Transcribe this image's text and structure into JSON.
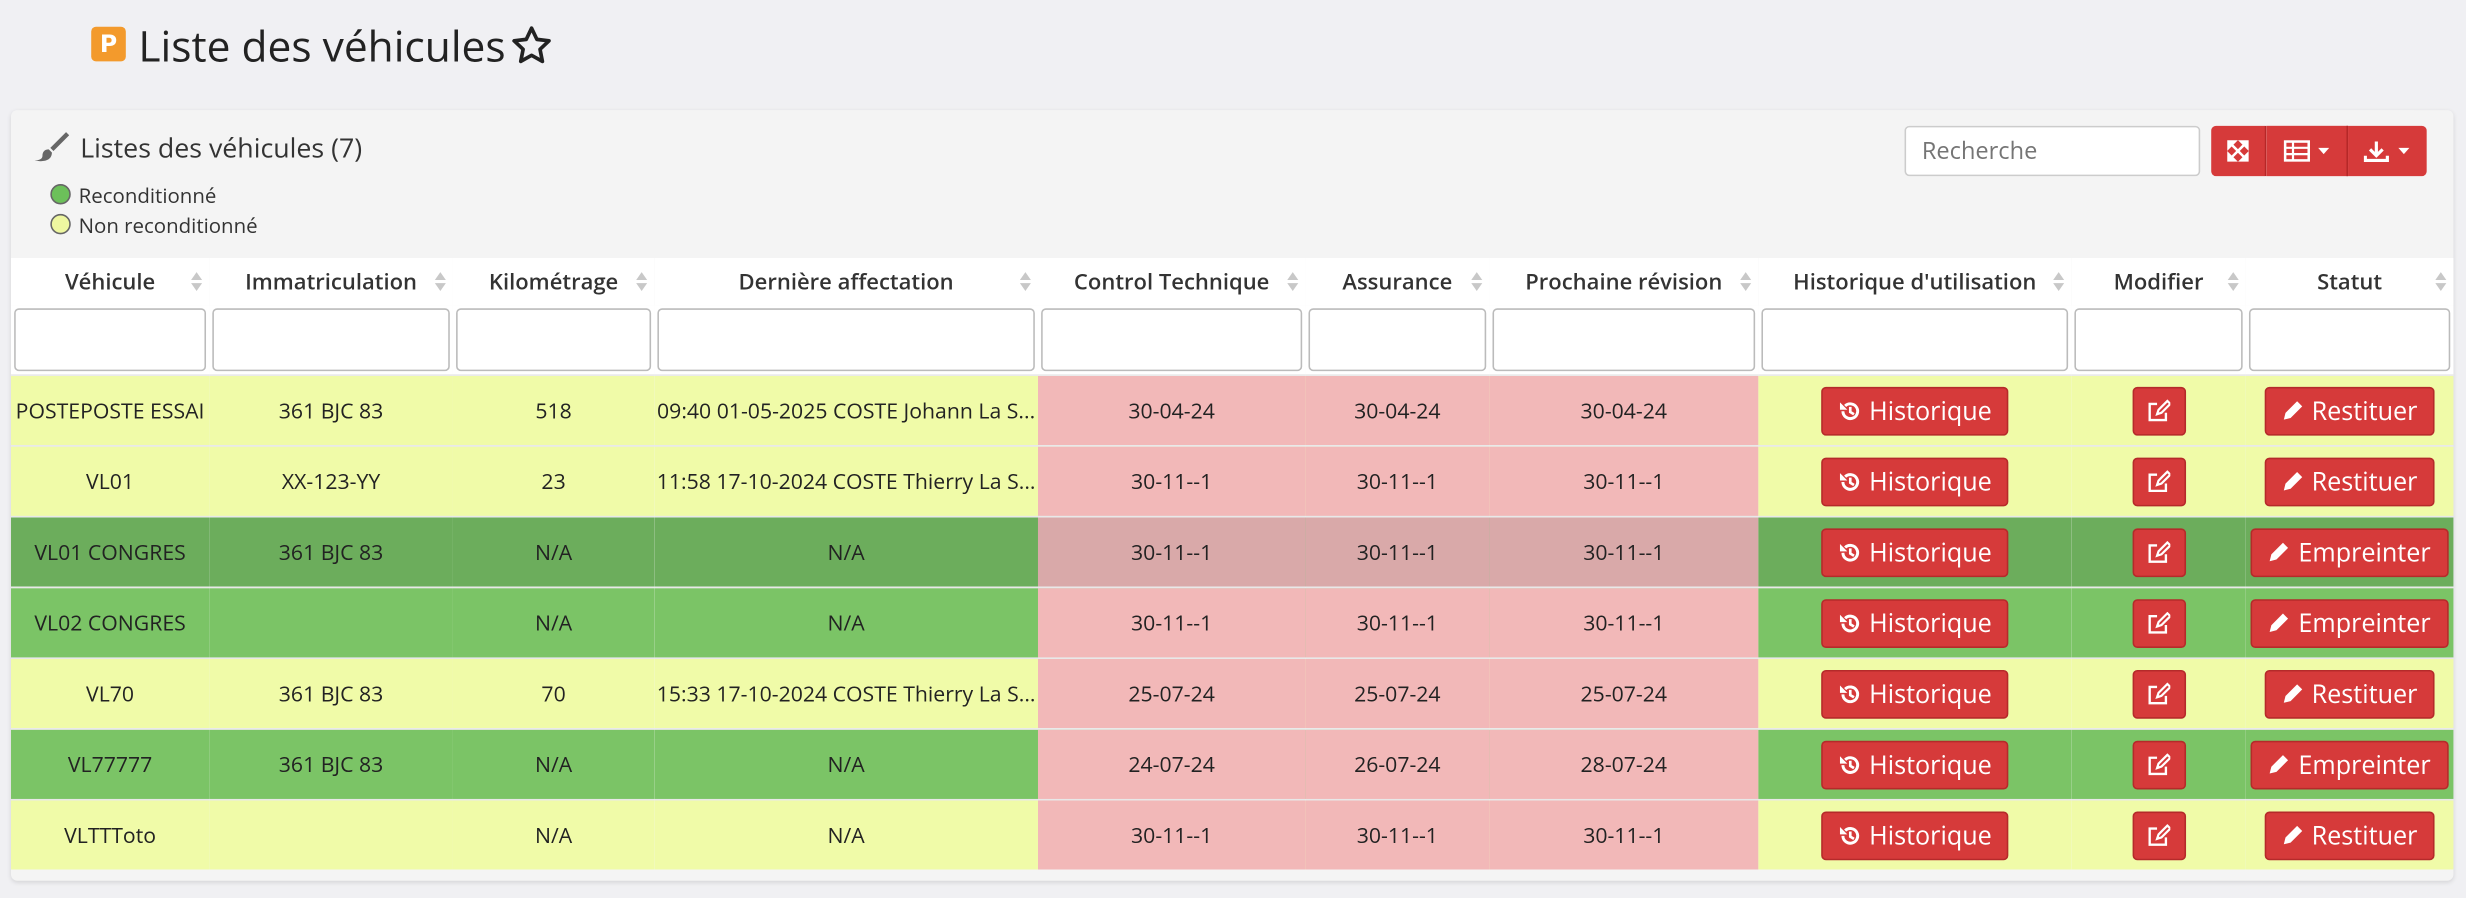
{
  "header": {
    "title": "Liste des véhicules"
  },
  "card": {
    "title": "Listes des véhicules (7)",
    "legend": [
      {
        "label": "Reconditionné",
        "color": "#6cc05a"
      },
      {
        "label": "Non reconditionné",
        "color": "#eef7a0"
      }
    ],
    "search_placeholder": "Recherche"
  },
  "table": {
    "columns": [
      "Véhicule",
      "Immatriculation",
      "Kilométrage",
      "Dernière affectation",
      "Control Technique",
      "Assurance",
      "Prochaine révision",
      "Historique d'utilisation",
      "Modifier",
      "Statut"
    ],
    "rows": [
      {
        "color": "#f0fba8",
        "cells": [
          "POSTEPOSTE ESSAI",
          "361 BJC 83",
          518,
          "09:40 01-05-2025 COSTE Johann La S...",
          "30-04-24",
          "30-04-24",
          "30-04-24",
          "Historique",
          "Restituer"
        ]
      },
      {
        "color": "#f0fba8",
        "cells": [
          "VL01",
          "XX-123-YY",
          23,
          "11:58 17-10-2024 COSTE Thierry La S...",
          "30-11--1",
          "30-11--1",
          "30-11--1",
          "Historique",
          "Restituer"
        ]
      },
      {
        "color": "#6cad5c",
        "cells": [
          "VL01 CONGRES",
          "361 BJC 83",
          "N/A",
          "N/A",
          "30-11--1",
          "30-11--1",
          "30-11--1",
          "Historique",
          "Empreinter"
        ]
      },
      {
        "color": "#7bc466",
        "cells": [
          "VL02 CONGRES",
          null,
          "N/A",
          "N/A",
          "30-11--1",
          "30-11--1",
          "30-11--1",
          "Historique",
          "Empreinter"
        ]
      },
      {
        "color": "#f0fba8",
        "cells": [
          "VL70",
          "361 BJC 83",
          70,
          "15:33 17-10-2024 COSTE Thierry La S...",
          "25-07-24",
          "25-07-24",
          "25-07-24",
          "Historique",
          "Restituer"
        ]
      },
      {
        "color": "#7bc466",
        "cells": [
          "VL77777",
          "361 BJC 83",
          "N/A",
          "N/A",
          "24-07-24",
          "26-07-24",
          "28-07-24",
          "Historique",
          "Empreinter"
        ]
      },
      {
        "color": "#f0fba8",
        "cells": [
          "VLTTToto",
          null,
          "N/A",
          "N/A",
          "30-11--1",
          "30-11--1",
          "30-11--1",
          "Historique",
          "Restituer"
        ]
      }
    ]
  }
}
